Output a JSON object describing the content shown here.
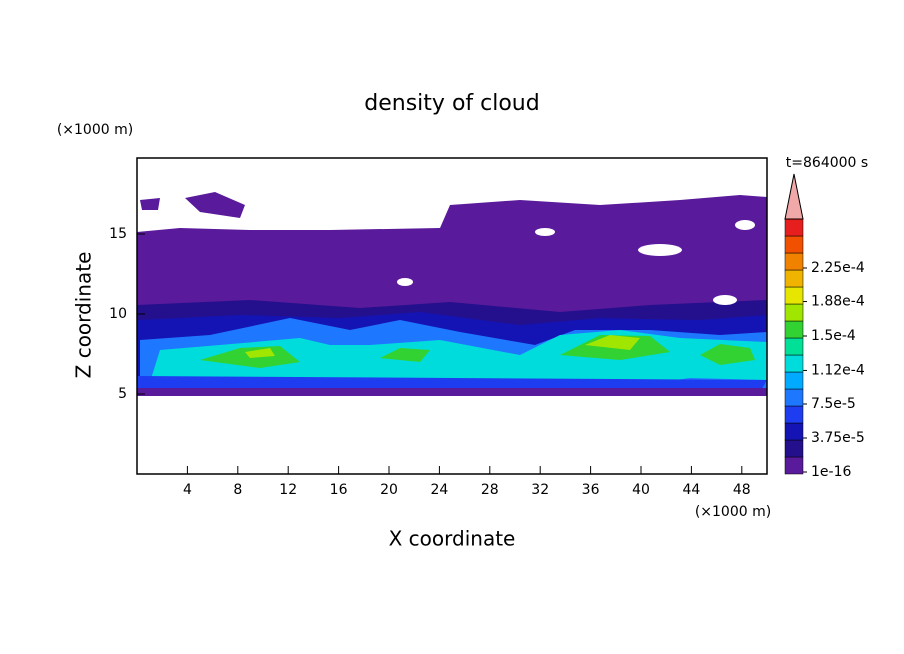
{
  "chart_data": {
    "type": "contour",
    "title": "density of cloud",
    "x_label": "X coordinate",
    "y_label": "Z coordinate",
    "x_unit": "(×1000 m)",
    "y_unit": "(×1000 m)",
    "annotation": "t=864000 s",
    "xlim": [
      0,
      50
    ],
    "ylim": [
      0,
      19.75
    ],
    "xticks": [
      4,
      8,
      12,
      16,
      20,
      24,
      28,
      32,
      36,
      40,
      44,
      48
    ],
    "yticks": [
      5,
      10,
      15
    ],
    "colorbar_ticks": [
      {
        "value": 1e-16,
        "label": "1e-16"
      },
      {
        "value": 3.75e-05,
        "label": "3.75e-5"
      },
      {
        "value": 7.5e-05,
        "label": "7.5e-5"
      },
      {
        "value": 0.000112,
        "label": "1.12e-4"
      },
      {
        "value": 0.00015,
        "label": "1.5e-4"
      },
      {
        "value": 0.000188,
        "label": "1.88e-4"
      },
      {
        "value": 0.000225,
        "label": "2.25e-4"
      }
    ],
    "colors": [
      "#5a1a9c",
      "#24108c",
      "#1414b4",
      "#1e3cf0",
      "#1e78ff",
      "#00aaff",
      "#00dcdc",
      "#00e096",
      "#32d232",
      "#a0e600",
      "#e6e600",
      "#f0b400",
      "#f08200",
      "#f05000",
      "#e61e1e"
    ],
    "extend_color": "#f0a8a8"
  }
}
